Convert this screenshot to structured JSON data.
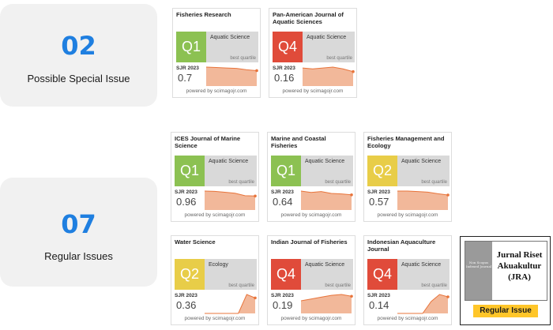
{
  "panels": [
    {
      "number": "02",
      "caption": "Possible Special Issue"
    },
    {
      "number": "07",
      "caption": "Regular Issues"
    }
  ],
  "card_labels": {
    "best_quartile": "best quartile",
    "sjr_label": "SJR 2023",
    "powered_by": "powered by scimagojr.com"
  },
  "quartile_colors": {
    "Q1": "#8cc152",
    "Q2": "#e8cd48",
    "Q4": "#e04b3a"
  },
  "cards": [
    {
      "title": "Fisheries Research",
      "quartile": "Q1",
      "category": "Aquatic Science",
      "sjr": "0.7",
      "trend": [
        0.86,
        0.84,
        0.82,
        0.8,
        0.74,
        0.7
      ]
    },
    {
      "title": "Pan-American Journal of Aquatic Sciences",
      "quartile": "Q4",
      "category": "Aquatic Science",
      "sjr": "0.16",
      "trend": [
        0.2,
        0.19,
        0.2,
        0.21,
        0.19,
        0.16
      ]
    },
    {
      "title": "ICES Journal of Marine Science",
      "quartile": "Q1",
      "category": "Aquatic Science",
      "sjr": "0.96",
      "trend": [
        1.3,
        1.28,
        1.22,
        1.15,
        0.98,
        0.96
      ]
    },
    {
      "title": "Marine and Coastal Fisheries",
      "quartile": "Q1",
      "category": "Aquatic Science",
      "sjr": "0.64",
      "trend": [
        0.8,
        0.74,
        0.78,
        0.7,
        0.68,
        0.64
      ]
    },
    {
      "title": "Fisheries Management and Ecology",
      "quartile": "Q2",
      "category": "Aquatic Science",
      "sjr": "0.57",
      "trend": [
        0.72,
        0.72,
        0.7,
        0.68,
        0.62,
        0.57
      ]
    },
    {
      "title": "Water Science",
      "quartile": "Q2",
      "category": "Ecology",
      "sjr": "0.36",
      "trend": [
        0.0,
        0.0,
        0.0,
        0.0,
        0.0,
        0.44,
        0.36
      ]
    },
    {
      "title": "Indian Journal of Fisheries",
      "quartile": "Q4",
      "category": "Aquatic Science",
      "sjr": "0.19",
      "trend": [
        0.14,
        0.16,
        0.18,
        0.2,
        0.21,
        0.19
      ]
    },
    {
      "title": "Indonesian Aquaculture Journal",
      "quartile": "Q4",
      "category": "Aquatic Science",
      "sjr": "0.14",
      "trend": [
        0.0,
        0.0,
        0.0,
        0.0,
        0.1,
        0.16,
        0.14
      ]
    }
  ],
  "jra": {
    "strip_text": "Non Scopus Indexed Journal",
    "title_lines": [
      "Jurnal Riset",
      "Akuakultur",
      "(JRA)"
    ],
    "badge": "Regular Issue"
  }
}
